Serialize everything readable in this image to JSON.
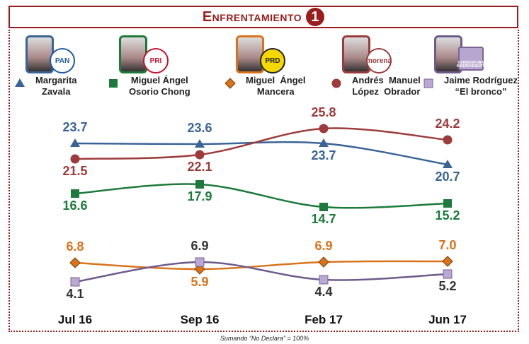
{
  "title": "Enfrentamiento",
  "title_number": "1",
  "note": "Sumando “No Declara” = 100%",
  "candidates": [
    {
      "name": "Margarita\nZavala",
      "party": "PAN",
      "color": "#3b6496",
      "marker": "triangle"
    },
    {
      "name": "Miguel Ángel\nOsorio Chong",
      "party": "PRI",
      "color": "#1d7a3c",
      "marker": "square"
    },
    {
      "name": "Miguel  Ángel\nMancera",
      "party": "PRD",
      "color": "#d9731b",
      "marker": "diamond"
    },
    {
      "name": "Andrés  Manuel\nLópez  Obrador",
      "party": "morena",
      "color": "#9c3b3b",
      "marker": "circle"
    },
    {
      "name": "Jaime Rodríguez\n“El bronco”",
      "party": "CANDIDATURA INDEPENDIENTE",
      "color": "#6f5a8c",
      "marker": "square-light"
    }
  ],
  "chart_data": {
    "type": "line",
    "categories": [
      "Jul 16",
      "Sep 16",
      "Feb 17",
      "Jun 17"
    ],
    "series": [
      {
        "name": "Margarita Zavala",
        "values": [
          23.7,
          23.6,
          23.7,
          20.7
        ],
        "color": "#3b6496",
        "marker": "triangle"
      },
      {
        "name": "Miguel Ángel Osorio Chong",
        "values": [
          16.6,
          17.9,
          14.7,
          15.2
        ],
        "color": "#1d7a3c",
        "marker": "square"
      },
      {
        "name": "Miguel Ángel Mancera",
        "values": [
          6.8,
          5.9,
          6.9,
          7.0
        ],
        "color": "#d9731b",
        "marker": "diamond"
      },
      {
        "name": "Andrés Manuel López Obrador",
        "values": [
          21.5,
          22.1,
          25.8,
          24.2
        ],
        "color": "#9c3b3b",
        "marker": "circle"
      },
      {
        "name": "Jaime Rodríguez “El bronco”",
        "values": [
          4.1,
          6.9,
          4.4,
          5.2
        ],
        "color": "#6f5a8c",
        "marker": "square-light"
      }
    ],
    "grid": false,
    "legend": "top"
  }
}
